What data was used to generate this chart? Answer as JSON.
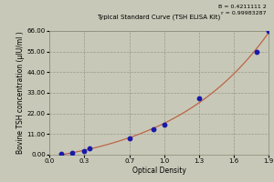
{
  "title": "Typical Standard Curve (TSH ELISA Kit)",
  "xlabel": "Optical Density",
  "ylabel": "Bovine TSH concentration (μIU/ml )",
  "background_color": "#c8c8b8",
  "plot_bg_color": "#c8c8b8",
  "equation_line1": "B = 0.4211111 2",
  "equation_line2": "r = 0.99983287",
  "x_data": [
    0.1,
    0.2,
    0.3,
    0.35,
    0.7,
    0.9,
    1.0,
    1.3,
    1.8,
    1.9
  ],
  "y_data": [
    0.5,
    1.0,
    2.0,
    3.5,
    8.5,
    13.5,
    16.0,
    30.0,
    55.0,
    66.0
  ],
  "xlim": [
    0.0,
    1.9
  ],
  "ylim": [
    0.0,
    66.0
  ],
  "xticks": [
    0.0,
    0.3,
    0.7,
    1.0,
    1.3,
    1.6,
    1.9
  ],
  "yticks": [
    0.0,
    11.0,
    22.0,
    33.0,
    44.0,
    55.0,
    66.0
  ],
  "ytick_labels": [
    "0.00",
    "11.00",
    "22.00",
    "33.00",
    "44.00",
    "55.00",
    "66.00"
  ],
  "xtick_labels": [
    "0.0",
    "0.3",
    "0.7",
    "1.0",
    "1.3",
    "1.6",
    "1.9"
  ],
  "dot_color": "#1a1aaa",
  "line_color": "#bb6644",
  "grid_color": "#999988",
  "grid_linestyle": "--",
  "title_fontsize": 5.0,
  "axis_label_fontsize": 5.5,
  "tick_fontsize": 5.0,
  "annotation_fontsize": 4.5
}
